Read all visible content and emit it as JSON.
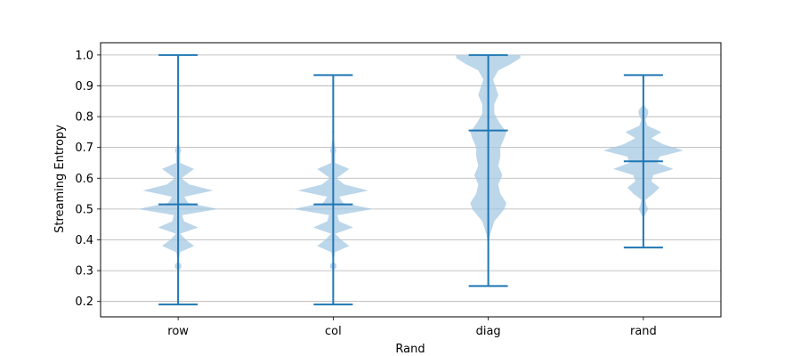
{
  "chart_data": {
    "type": "violin",
    "title": "",
    "xlabel": "Rand",
    "ylabel": "Streaming Entropy",
    "categories": [
      "row",
      "col",
      "diag",
      "rand"
    ],
    "ylim": [
      0.15,
      1.04
    ],
    "yticks": [
      0.2,
      0.3,
      0.4,
      0.5,
      0.6,
      0.7,
      0.8,
      0.9,
      1.0
    ],
    "ytick_labels": [
      "0.2",
      "0.3",
      "0.4",
      "0.5",
      "0.6",
      "0.7",
      "0.8",
      "0.9",
      "1.0"
    ],
    "grid": {
      "y": true,
      "x": false
    },
    "colors": {
      "body": "#a6c8e3",
      "line": "#1f77b4",
      "grid": "#b0b0b0",
      "axis": "#000000"
    },
    "violins": [
      {
        "category": "row",
        "min": 0.19,
        "max": 1.0,
        "mean": 0.515,
        "density": [
          [
            0.19,
            0.0
          ],
          [
            0.3,
            0.0
          ],
          [
            0.31,
            0.08
          ],
          [
            0.32,
            0.08
          ],
          [
            0.33,
            0.0
          ],
          [
            0.36,
            0.05
          ],
          [
            0.38,
            0.4
          ],
          [
            0.4,
            0.2
          ],
          [
            0.42,
            0.05
          ],
          [
            0.44,
            0.5
          ],
          [
            0.46,
            0.15
          ],
          [
            0.48,
            0.1
          ],
          [
            0.5,
            1.0
          ],
          [
            0.52,
            0.25
          ],
          [
            0.54,
            0.15
          ],
          [
            0.56,
            0.88
          ],
          [
            0.58,
            0.28
          ],
          [
            0.6,
            0.08
          ],
          [
            0.63,
            0.4
          ],
          [
            0.65,
            0.05
          ],
          [
            0.68,
            0.05
          ],
          [
            0.69,
            0.08
          ],
          [
            0.7,
            0.05
          ],
          [
            0.72,
            0.0
          ],
          [
            1.0,
            0.0
          ]
        ]
      },
      {
        "category": "col",
        "min": 0.19,
        "max": 0.935,
        "mean": 0.515,
        "density": [
          [
            0.19,
            0.0
          ],
          [
            0.3,
            0.0
          ],
          [
            0.31,
            0.08
          ],
          [
            0.32,
            0.08
          ],
          [
            0.33,
            0.0
          ],
          [
            0.36,
            0.05
          ],
          [
            0.38,
            0.4
          ],
          [
            0.4,
            0.2
          ],
          [
            0.42,
            0.05
          ],
          [
            0.44,
            0.5
          ],
          [
            0.46,
            0.15
          ],
          [
            0.48,
            0.1
          ],
          [
            0.5,
            1.0
          ],
          [
            0.52,
            0.25
          ],
          [
            0.54,
            0.15
          ],
          [
            0.56,
            0.88
          ],
          [
            0.58,
            0.28
          ],
          [
            0.6,
            0.08
          ],
          [
            0.63,
            0.4
          ],
          [
            0.65,
            0.05
          ],
          [
            0.68,
            0.05
          ],
          [
            0.69,
            0.08
          ],
          [
            0.7,
            0.05
          ],
          [
            0.74,
            0.0
          ],
          [
            0.75,
            0.03
          ],
          [
            0.76,
            0.0
          ],
          [
            0.935,
            0.0
          ]
        ]
      },
      {
        "category": "diag",
        "min": 0.25,
        "max": 1.0,
        "mean": 0.755,
        "density": [
          [
            0.25,
            0.0
          ],
          [
            0.38,
            0.0
          ],
          [
            0.42,
            0.05
          ],
          [
            0.46,
            0.15
          ],
          [
            0.5,
            0.4
          ],
          [
            0.52,
            0.45
          ],
          [
            0.55,
            0.3
          ],
          [
            0.58,
            0.25
          ],
          [
            0.61,
            0.35
          ],
          [
            0.64,
            0.25
          ],
          [
            0.67,
            0.3
          ],
          [
            0.7,
            0.3
          ],
          [
            0.73,
            0.4
          ],
          [
            0.75,
            0.45
          ],
          [
            0.78,
            0.28
          ],
          [
            0.81,
            0.15
          ],
          [
            0.84,
            0.15
          ],
          [
            0.87,
            0.25
          ],
          [
            0.89,
            0.2
          ],
          [
            0.92,
            0.12
          ],
          [
            0.95,
            0.25
          ],
          [
            0.97,
            0.55
          ],
          [
            0.99,
            0.8
          ],
          [
            1.0,
            0.8
          ]
        ]
      },
      {
        "category": "rand",
        "min": 0.375,
        "max": 0.935,
        "mean": 0.655,
        "density": [
          [
            0.375,
            0.0
          ],
          [
            0.47,
            0.0
          ],
          [
            0.49,
            0.08
          ],
          [
            0.5,
            0.12
          ],
          [
            0.51,
            0.08
          ],
          [
            0.53,
            0.05
          ],
          [
            0.55,
            0.25
          ],
          [
            0.57,
            0.4
          ],
          [
            0.59,
            0.2
          ],
          [
            0.61,
            0.25
          ],
          [
            0.63,
            0.75
          ],
          [
            0.65,
            0.35
          ],
          [
            0.67,
            0.4
          ],
          [
            0.69,
            1.0
          ],
          [
            0.71,
            0.5
          ],
          [
            0.73,
            0.2
          ],
          [
            0.75,
            0.45
          ],
          [
            0.77,
            0.1
          ],
          [
            0.79,
            0.05
          ],
          [
            0.81,
            0.12
          ],
          [
            0.82,
            0.12
          ],
          [
            0.84,
            0.0
          ],
          [
            0.935,
            0.0
          ]
        ]
      }
    ]
  }
}
